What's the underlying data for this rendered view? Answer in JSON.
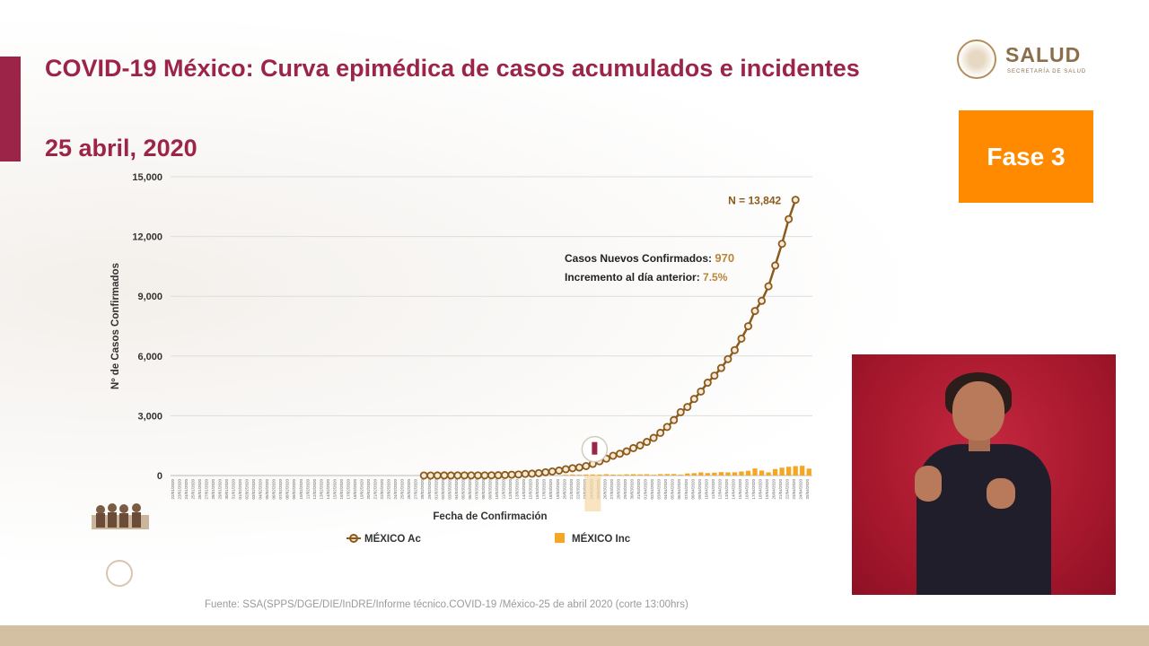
{
  "slide": {
    "title": "COVID-19 México: Curva epimédica de casos acumulados e incidentes",
    "date": "25 abril, 2020",
    "phase_label": "Fase 3",
    "logo_text": "SALUD",
    "logo_subtext": "SECRETARÍA DE SALUD",
    "source": "Fuente: SSA(SPPS/DGE/DIE/InDRE/Informe técnico.COVID-19 /México-25 de abril 2020 (corte 13:00hrs)",
    "colors": {
      "accent": "#9d2449",
      "phase": "#ff8a00",
      "line": "#8b5a1c",
      "bars": "#f5a623"
    }
  },
  "chart_data": {
    "type": "line",
    "ylabel": "Nº de Casos Confirmados",
    "xlabel": "Fecha de Confirmación",
    "ylim": [
      0,
      15000
    ],
    "yticks": [
      "0",
      "3,000",
      "6,000",
      "9,000",
      "12,000",
      "15,000"
    ],
    "grid": true,
    "legend_position": "bottom",
    "annotation_total": "N = 13,842",
    "annotation_new_label": "Casos Nuevos Confirmados:",
    "annotation_new_value": "970",
    "annotation_increase_label": "Incremento al día anterior:",
    "annotation_increase_value": "7.5%",
    "x_start": "2020-01-22",
    "x_end": "2020-04-25",
    "series": [
      {
        "name": "MÉXICO Ac",
        "type": "line",
        "start": "2020-02-28",
        "values": [
          1,
          2,
          4,
          5,
          5,
          6,
          7,
          7,
          7,
          8,
          12,
          15,
          26,
          41,
          53,
          82,
          93,
          118,
          164,
          203,
          251,
          316,
          367,
          405,
          475,
          585,
          717,
          848,
          993,
          1094,
          1215,
          1378,
          1510,
          1688,
          1890,
          2143,
          2439,
          2785,
          3181,
          3441,
          3844,
          4219,
          4661,
          5014,
          5399,
          5847,
          6297,
          6875,
          7497,
          8261,
          8772,
          9501,
          10544,
          11633,
          12872,
          13842
        ]
      },
      {
        "name": "MÉXICO Inc",
        "type": "bar",
        "start": "2020-03-20",
        "values": [
          39,
          49,
          39,
          48,
          52,
          46,
          65,
          47,
          38,
          59,
          65,
          56,
          64,
          38,
          70,
          75,
          74,
          41,
          106,
          120,
          160,
          125,
          146,
          173,
          160,
          162,
          203,
          240,
          355,
          250,
          160,
          325,
          396,
          440,
          472,
          490,
          350
        ]
      }
    ]
  }
}
